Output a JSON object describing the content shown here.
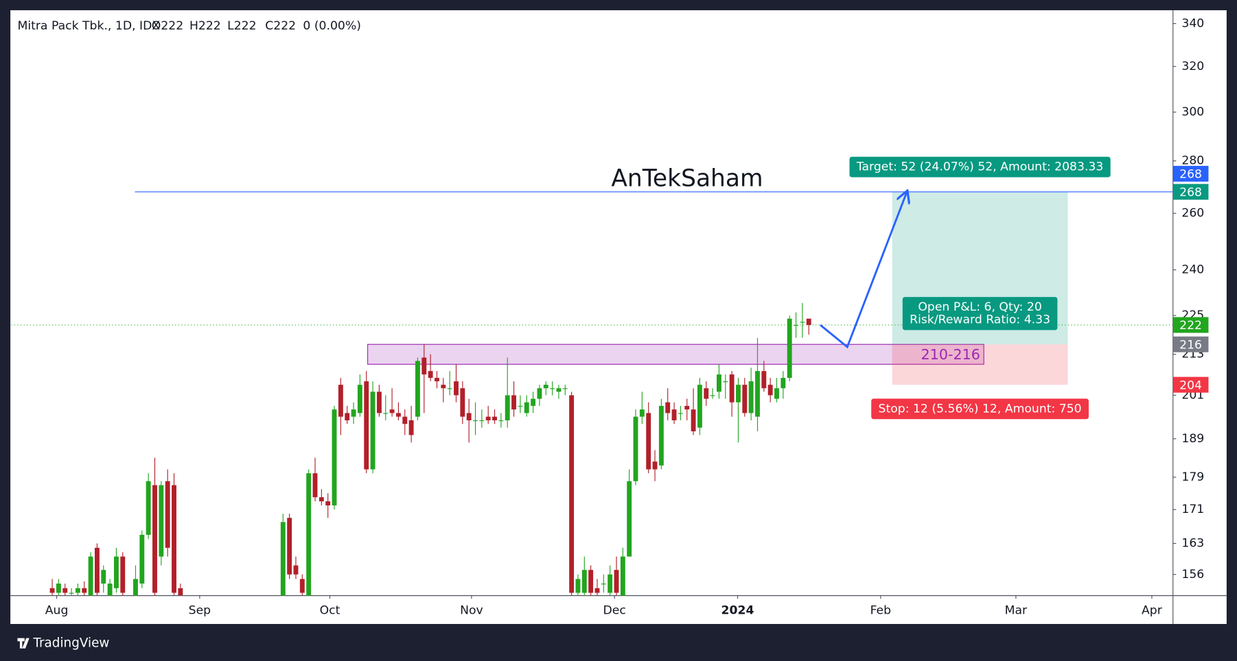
{
  "header": {
    "symbol": "Mitra Pack Tbk., 1D, IDX",
    "ohlc": [
      "O222",
      "H222",
      "L222",
      "C222",
      "0 (0.00%)"
    ]
  },
  "footer": {
    "brand": "TradingView"
  },
  "chart_data": {
    "type": "candlestick",
    "up_color": "#22a51f",
    "down_color": "#b2202a",
    "log_scale": true,
    "grid": false,
    "ylim": [
      151.4,
      346.1
    ],
    "yticks": [
      340,
      320,
      300,
      280,
      260,
      240,
      225,
      213,
      201,
      189,
      179,
      171,
      163,
      156
    ],
    "xlim": [
      -6.4,
      174.8
    ],
    "xticks": [
      {
        "value": 0.7,
        "label": "Aug"
      },
      {
        "value": 23,
        "label": "Sep"
      },
      {
        "value": 43.3,
        "label": "Oct"
      },
      {
        "value": 65.4,
        "label": "Nov"
      },
      {
        "value": 87.7,
        "label": "Dec"
      },
      {
        "value": 106.9,
        "label": "2024"
      },
      {
        "value": 129.2,
        "label": "Feb"
      },
      {
        "value": 150.3,
        "label": "Mar"
      },
      {
        "value": 171.5,
        "label": "Apr"
      }
    ],
    "open": [
      153,
      152,
      153,
      152,
      152,
      153,
      151,
      162,
      154,
      151,
      153,
      160,
      null,
      151,
      154,
      165,
      177,
      160,
      178,
      177,
      153,
      null,
      null,
      null,
      null,
      null,
      null,
      null,
      null,
      null,
      null,
      null,
      null,
      null,
      null,
      null,
      151,
      169,
      158,
      155,
      151,
      180,
      174,
      173,
      172,
      204,
      196,
      195,
      196,
      205,
      181,
      202,
      196,
      197,
      196,
      195,
      194,
      195,
      212,
      208,
      206,
      204,
      203,
      205,
      203,
      196,
      194,
      194,
      195,
      195,
      194,
      194,
      201,
      198,
      196,
      198,
      200,
      203,
      203,
      202,
      203,
      201,
      152,
      152,
      157,
      153,
      154,
      152,
      157,
      151,
      160,
      178,
      195,
      196,
      183,
      182,
      199,
      197,
      196,
      198,
      197,
      192,
      203,
      201,
      202,
      205,
      207,
      199,
      204,
      196,
      195,
      208,
      204,
      200,
      203,
      206,
      222,
      223,
      224
    ],
    "high": [
      155,
      155,
      154,
      153,
      154,
      154.5,
      161,
      163,
      158,
      155,
      162,
      161,
      null,
      158,
      166,
      180,
      184,
      178,
      181,
      180,
      154,
      null,
      null,
      null,
      null,
      null,
      null,
      null,
      null,
      null,
      null,
      null,
      null,
      null,
      null,
      null,
      170,
      170,
      160,
      156,
      181,
      184,
      176,
      175,
      198,
      206,
      198,
      199,
      207,
      208,
      205,
      204,
      201,
      203,
      199,
      197,
      198,
      212,
      216,
      213,
      208,
      206,
      208,
      210,
      205,
      200,
      199,
      197,
      198,
      197,
      196,
      212,
      205,
      201,
      201,
      202,
      204,
      205,
      205,
      204,
      204,
      202,
      156,
      160,
      158,
      155,
      156,
      158,
      160,
      162,
      181,
      197,
      202,
      199,
      186,
      200,
      203,
      199,
      198,
      200,
      203,
      206,
      205,
      203,
      210,
      207,
      208,
      206,
      206,
      209,
      218,
      211,
      206,
      206,
      208,
      225,
      226,
      229,
      224
    ],
    "low": [
      151,
      151,
      151,
      151,
      151,
      151,
      151,
      151,
      152,
      151,
      152,
      151,
      null,
      151,
      153,
      164,
      151,
      158,
      160,
      151,
      151,
      null,
      null,
      null,
      null,
      null,
      null,
      null,
      null,
      null,
      null,
      null,
      null,
      null,
      null,
      null,
      151,
      155,
      155,
      151,
      151,
      173,
      172,
      169,
      171,
      190,
      193,
      193,
      195,
      180,
      180,
      195,
      194,
      195,
      194,
      190,
      188,
      194,
      196,
      205,
      203,
      199,
      201,
      199,
      193,
      188,
      190,
      192,
      193,
      193,
      192,
      192,
      195,
      196,
      195,
      196,
      198,
      201,
      201,
      200,
      201,
      151,
      151,
      151,
      151,
      151,
      152,
      151,
      151,
      151,
      160,
      177,
      193,
      180,
      178,
      181,
      194,
      193,
      194,
      194,
      190,
      190,
      198,
      200,
      200,
      200,
      195,
      188,
      195,
      194,
      191,
      202,
      199,
      199,
      200,
      205,
      218,
      218,
      219
    ],
    "close": [
      152,
      154,
      152,
      152,
      153,
      152,
      160,
      152,
      157,
      154,
      160,
      152,
      null,
      155,
      165,
      178,
      152,
      177,
      162,
      152,
      151.5,
      null,
      null,
      null,
      null,
      null,
      null,
      null,
      null,
      null,
      null,
      null,
      null,
      null,
      null,
      null,
      168,
      156,
      156,
      152,
      180,
      174,
      173,
      172,
      197,
      195,
      194,
      197,
      204,
      181,
      202,
      196,
      196,
      196,
      195,
      193,
      190,
      211,
      207,
      206,
      205,
      203,
      203,
      201,
      195,
      194,
      194,
      194,
      194,
      194,
      194,
      201,
      197,
      198,
      199,
      200,
      203,
      204,
      203,
      203,
      203,
      152,
      155,
      157,
      152,
      152,
      154,
      156,
      152,
      160,
      178,
      195,
      197,
      181,
      181,
      198,
      196,
      194,
      196,
      197,
      191,
      204,
      200,
      201,
      207,
      205,
      199,
      204,
      196,
      205,
      208,
      203,
      201,
      203,
      206,
      224,
      222,
      223,
      222
    ],
    "last_price": 222,
    "watermark": "AnTekSaham",
    "hline": {
      "value": 268,
      "x_start": 12.9,
      "color": "#2962ff"
    },
    "zone": {
      "range": [
        210,
        216
      ],
      "x": [
        49.2,
        145.3
      ],
      "label": "210-216",
      "color": "#9c27b0"
    },
    "position": {
      "entry": 216,
      "target": 268,
      "stop": 204,
      "x": [
        131,
        158.4
      ],
      "target_label": "Target: 52 (24.07%) 52, Amount: 2083.33",
      "stop_label": "Stop: 12 (5.56%) 12, Amount: 750",
      "pnl_label": [
        "Open P&L: 6, Qty: 20",
        "Risk/Reward Ratio: 4.33"
      ]
    },
    "arrow": {
      "x": [
        119.8,
        124,
        133.3
      ],
      "y": [
        222,
        215.2,
        268
      ],
      "color": "#2962ff"
    }
  }
}
